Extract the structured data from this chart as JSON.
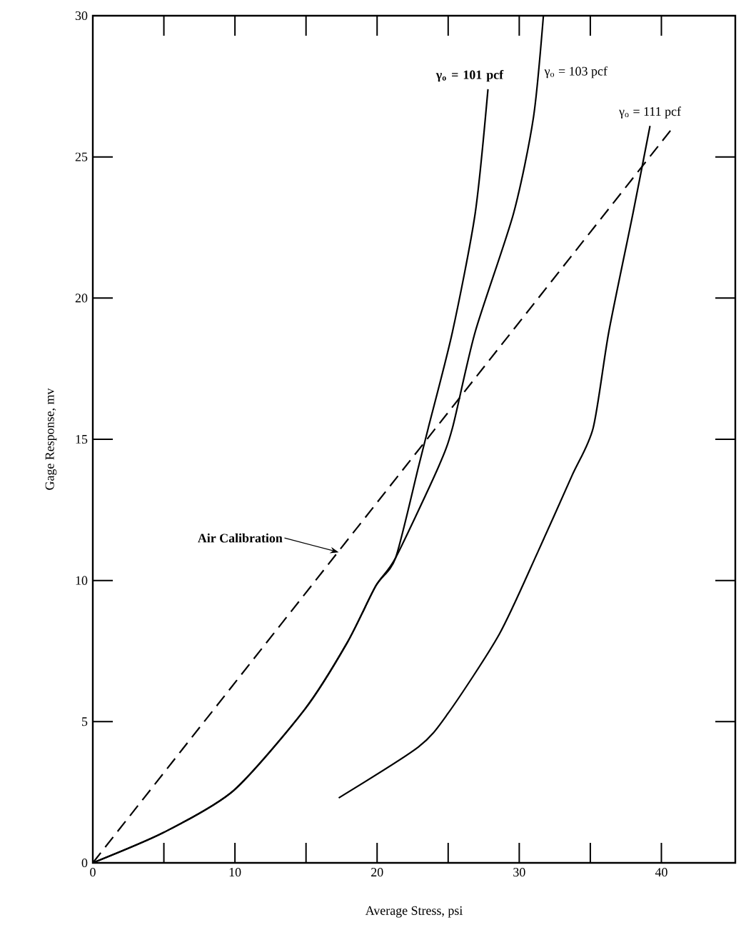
{
  "chart_data": {
    "type": "line",
    "xlabel": "Average Stress, psi",
    "ylabel": "Gage Response, mv",
    "xlim": [
      0,
      45.2
    ],
    "ylim": [
      0,
      30
    ],
    "xticks": [
      0,
      {
        "value": 5,
        "label": null
      },
      10,
      {
        "value": 15,
        "label": null
      },
      20,
      {
        "value": 25,
        "label": null
      },
      30,
      {
        "value": 35,
        "label": null
      },
      40
    ],
    "yticks": [
      0,
      5,
      10,
      15,
      20,
      25,
      30
    ],
    "legend": false,
    "marker": "none",
    "grid": false,
    "series": [
      {
        "name": "γ$_{o}$ = 101 pcf",
        "color": "#000000",
        "line_style": "solid",
        "x": [
          0,
          5.0,
          9.9,
          14.9,
          17.9,
          19.9,
          21.3,
          22.9,
          23.6,
          25.3,
          26.9,
          27.8
        ],
        "values": [
          0,
          1.08,
          2.56,
          5.43,
          7.8,
          9.8,
          10.8,
          14.0,
          15.4,
          18.8,
          23.0,
          27.4
        ]
      },
      {
        "name": "γ$_{o}$ = 103 pcf",
        "color": "#000000",
        "line_style": "solid",
        "x": [
          0,
          5.0,
          9.9,
          14.9,
          17.9,
          19.9,
          21.3,
          24.3,
          25.3,
          26.9,
          29.6,
          31.0,
          31.7
        ],
        "values": [
          0,
          1.08,
          2.56,
          5.43,
          7.8,
          9.8,
          10.8,
          14.0,
          15.4,
          18.8,
          23.0,
          26.4,
          30
        ]
      },
      {
        "name": "γ$_{o}$ = 111 pcf",
        "color": "#000000",
        "line_style": "solid",
        "x": [
          17.3,
          22.9,
          25.0,
          28.6,
          31.3,
          33.7,
          35.2,
          36.3,
          38.0,
          39.2
        ],
        "values": [
          2.3,
          4.1,
          5.3,
          8.1,
          11.0,
          13.7,
          15.4,
          18.8,
          23.0,
          26.1
        ]
      },
      {
        "color": "#000000",
        "line_style": "dashed",
        "x": [
          0,
          40.9
        ],
        "values": [
          0,
          26.1
        ]
      }
    ],
    "annotations": [
      {
        "text": "Air Calibration",
        "x": 17.3,
        "y": 11.0
      }
    ]
  }
}
